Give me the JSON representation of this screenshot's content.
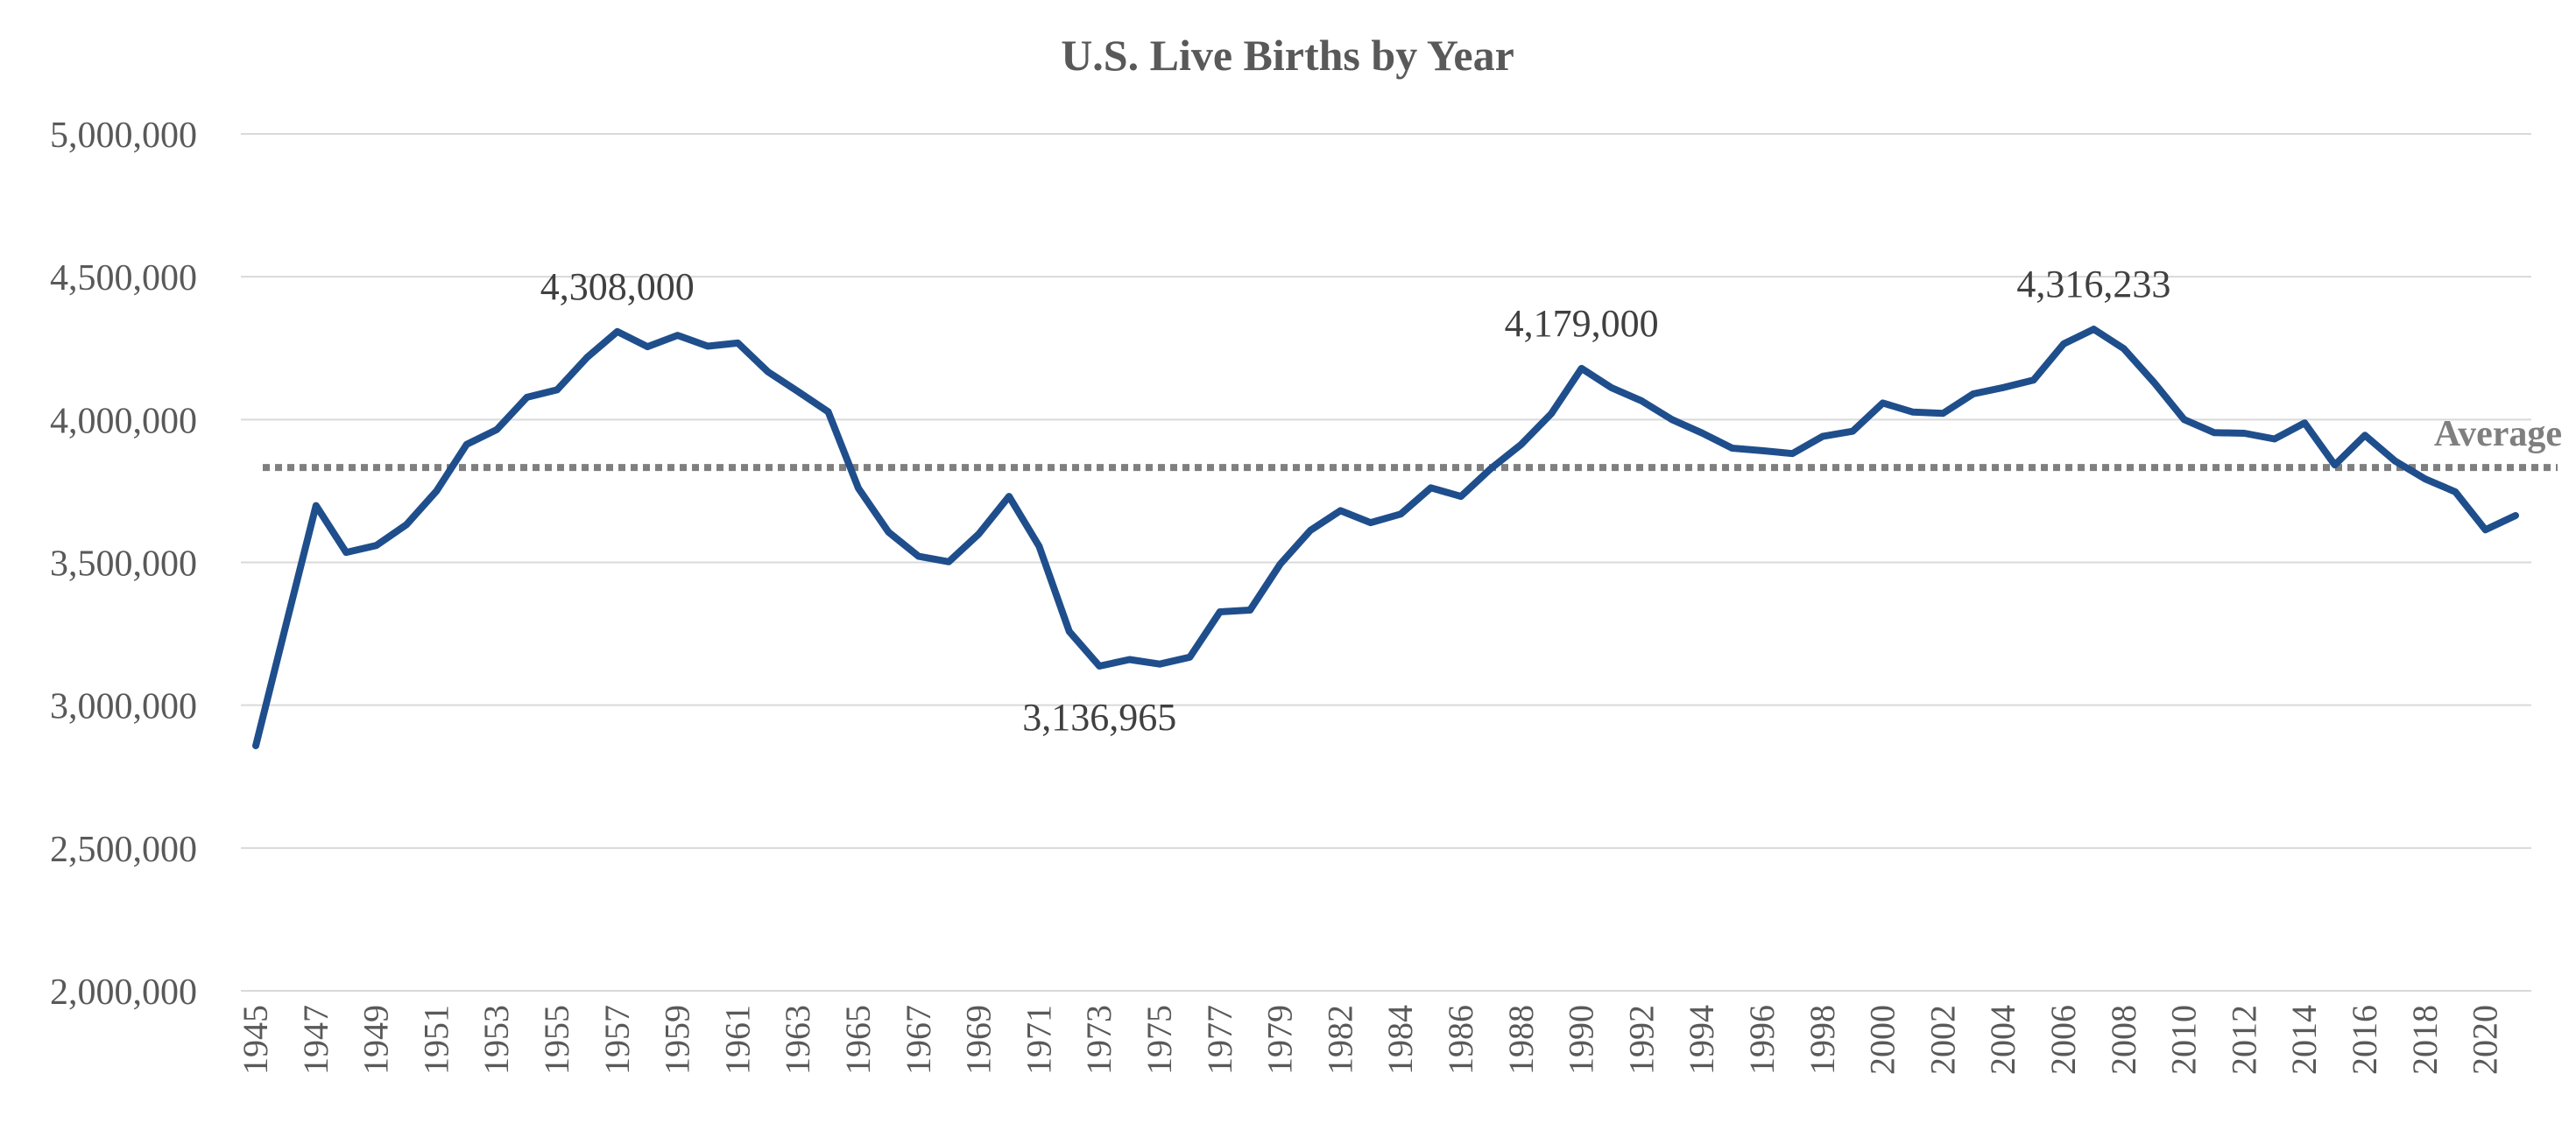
{
  "chart_data": {
    "type": "line",
    "title": "U.S. Live Births by Year",
    "xlabel": "",
    "ylabel": "",
    "ylim": [
      2000000,
      5000000
    ],
    "y_ticks": [
      2000000,
      2500000,
      3000000,
      3500000,
      4000000,
      4500000,
      5000000
    ],
    "y_tick_labels": [
      "2,000,000",
      "2,500,000",
      "3,000,000",
      "3,500,000",
      "4,000,000",
      "4,500,000",
      "5,000,000"
    ],
    "grid": true,
    "x_tick_labels": [
      "1945",
      "1947",
      "1949",
      "1951",
      "1953",
      "1955",
      "1957",
      "1959",
      "1961",
      "1963",
      "1965",
      "1967",
      "1969",
      "1971",
      "1973",
      "1975",
      "1977",
      "1979",
      "1982",
      "1984",
      "1986",
      "1988",
      "1990",
      "1992",
      "1994",
      "1996",
      "1998",
      "2000",
      "2002",
      "2004",
      "2006",
      "2008",
      "2010",
      "2012",
      "2014",
      "2016",
      "2018",
      "2020"
    ],
    "series": [
      {
        "name": "Live Births",
        "color": "#1f4e8c",
        "x": [
          1945,
          1946,
          1947,
          1948,
          1949,
          1950,
          1951,
          1952,
          1953,
          1954,
          1955,
          1956,
          1957,
          1958,
          1959,
          1960,
          1961,
          1962,
          1963,
          1964,
          1965,
          1966,
          1967,
          1968,
          1969,
          1970,
          1971,
          1972,
          1973,
          1974,
          1975,
          1976,
          1977,
          1978,
          1979,
          1980,
          1982,
          1983,
          1984,
          1985,
          1986,
          1987,
          1988,
          1989,
          1990,
          1991,
          1992,
          1993,
          1994,
          1995,
          1996,
          1997,
          1998,
          1999,
          2000,
          2001,
          2002,
          2003,
          2004,
          2005,
          2006,
          2007,
          2008,
          2009,
          2010,
          2011,
          2012,
          2013,
          2014,
          2015,
          2016,
          2017,
          2018,
          2019,
          2020,
          2021
        ],
        "values": [
          2858000,
          3280000,
          3699000,
          3535000,
          3559000,
          3632000,
          3750000,
          3913000,
          3965000,
          4078000,
          4104000,
          4218000,
          4308000,
          4255000,
          4295000,
          4257000,
          4268000,
          4167000,
          4098000,
          4027000,
          3760000,
          3606000,
          3521000,
          3502000,
          3600000,
          3731000,
          3556000,
          3258000,
          3136965,
          3160000,
          3144000,
          3168000,
          3327000,
          3333000,
          3494000,
          3612000,
          3681000,
          3639000,
          3669000,
          3761000,
          3731000,
          3829000,
          3913000,
          4021000,
          4179000,
          4111000,
          4065000,
          4000000,
          3953000,
          3900000,
          3891000,
          3881000,
          3941000,
          3959000,
          4058000,
          4026000,
          4022000,
          4090000,
          4112000,
          4138000,
          4265000,
          4316233,
          4248000,
          4130000,
          4000000,
          3954000,
          3952000,
          3932000,
          3988000,
          3841000,
          3945000,
          3855000,
          3792000,
          3747000,
          3614000,
          3664000
        ]
      }
    ],
    "average": {
      "label": "Average",
      "value": 3832000,
      "color": "#7f7f7f"
    },
    "annotations": [
      {
        "text": "4,308,000",
        "x": 1957,
        "y": 4308000,
        "placement": "above"
      },
      {
        "text": "3,136,965",
        "x": 1973,
        "y": 3136965,
        "placement": "below"
      },
      {
        "text": "4,179,000",
        "x": 1990,
        "y": 4179000,
        "placement": "above"
      },
      {
        "text": "4,316,233",
        "x": 2007,
        "y": 4316233,
        "placement": "above"
      }
    ]
  }
}
